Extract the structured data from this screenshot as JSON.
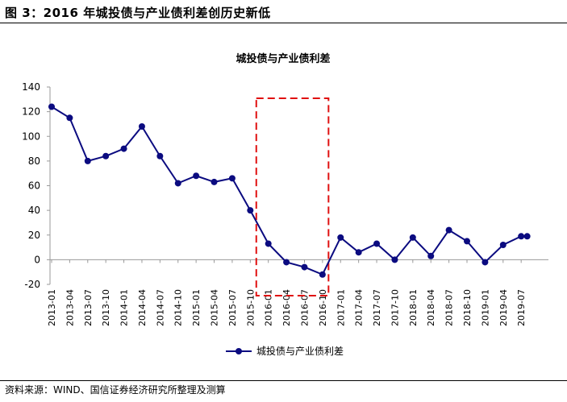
{
  "figure_title": "图 3：2016 年城投债与产业债利差创历史新低",
  "source_note": "资料来源：WIND、国信证券经济研究所整理及测算",
  "colors": {
    "series": "#0b0b80",
    "highlight_box": "#e01010",
    "axis": "#9a9a9a",
    "text": "#000000"
  },
  "chart_data": {
    "type": "line",
    "title": "城投债与产业债利差",
    "xlabel": "",
    "ylabel": "",
    "ylim": [
      -20,
      140
    ],
    "yticks": [
      -20,
      0,
      20,
      40,
      60,
      80,
      100,
      120,
      140
    ],
    "grid": false,
    "legend_position": "bottom-center",
    "categories": [
      "2013-01",
      "2013-04",
      "2013-07",
      "2013-10",
      "2014-01",
      "2014-04",
      "2014-07",
      "2014-10",
      "2015-01",
      "2015-04",
      "2015-07",
      "2015-10",
      "2016-01",
      "2016-04",
      "2016-07",
      "2016-10",
      "2017-01",
      "2017-04",
      "2017-07",
      "2017-10",
      "2018-01",
      "2018-04",
      "2018-07",
      "2018-10",
      "2019-01",
      "2019-04",
      "2019-07"
    ],
    "series": [
      {
        "name": "城投债与产业债利差",
        "x": [
          "2013-01",
          "2013-04",
          "2013-07",
          "2013-10",
          "2014-01",
          "2014-04",
          "2014-07",
          "2014-10",
          "2015-01",
          "2015-04",
          "2015-07",
          "2015-10",
          "2016-01",
          "2016-04",
          "2016-07",
          "2016-10",
          "2017-01",
          "2017-04",
          "2017-07",
          "2017-10",
          "2018-01",
          "2018-04",
          "2018-07",
          "2018-10",
          "2019-01",
          "2019-04",
          "2019-07",
          "2019-08"
        ],
        "values": [
          124,
          115,
          80,
          84,
          90,
          108,
          84,
          62,
          68,
          63,
          66,
          40,
          13,
          -2,
          -6,
          -12,
          18,
          6,
          13,
          0,
          18,
          3,
          24,
          15,
          -2,
          12,
          19,
          19
        ]
      }
    ],
    "annotations": [
      {
        "type": "dashed-box",
        "x_from": "2015-11",
        "x_to": "2016-11"
      }
    ]
  }
}
